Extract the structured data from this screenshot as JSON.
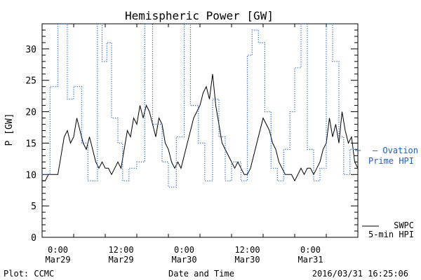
{
  "chart_data": {
    "type": "line",
    "title": "Hemispheric Power [GW]",
    "ylabel": "P [GW]",
    "xlabel": "Date and Time",
    "ylim": [
      0,
      34
    ],
    "xlim": [
      -7,
      13
    ],
    "x_unit": "hours relative to 00:00 Mar30 (scaled to 8-hour ticks)",
    "yticks": [
      "0",
      "5",
      "10",
      "15",
      "20",
      "25",
      "30"
    ],
    "xticks": [
      {
        "top": "0:00",
        "bottom": "Mar29"
      },
      {
        "top": "12:00",
        "bottom": "Mar29"
      },
      {
        "top": "0:00",
        "bottom": "Mar30"
      },
      {
        "top": "12:00",
        "bottom": "Mar30"
      },
      {
        "top": "0:00",
        "bottom": "Mar31"
      },
      {
        "top": "12:00",
        "bottom": "Mar31"
      }
    ],
    "grid": false,
    "legend_placement": "right",
    "series": [
      {
        "name": "SWPC 5-min HPI",
        "legend_lines": [
          "SWPC",
          "5-min HPI"
        ],
        "color": "#000000",
        "style": "solid",
        "points": [
          [
            -7.0,
            9
          ],
          [
            -6.8,
            9
          ],
          [
            -6.6,
            10
          ],
          [
            -6.4,
            10
          ],
          [
            -6.0,
            10
          ],
          [
            -5.8,
            13
          ],
          [
            -5.6,
            16
          ],
          [
            -5.4,
            17
          ],
          [
            -5.2,
            15
          ],
          [
            -5.0,
            16
          ],
          [
            -4.8,
            19
          ],
          [
            -4.6,
            17
          ],
          [
            -4.4,
            15
          ],
          [
            -4.2,
            14
          ],
          [
            -4.0,
            16
          ],
          [
            -3.8,
            14
          ],
          [
            -3.6,
            12
          ],
          [
            -3.4,
            11
          ],
          [
            -3.2,
            12
          ],
          [
            -3.0,
            11
          ],
          [
            -2.8,
            11
          ],
          [
            -2.6,
            10
          ],
          [
            -2.4,
            11
          ],
          [
            -2.2,
            12
          ],
          [
            -2.0,
            11
          ],
          [
            -1.8,
            14
          ],
          [
            -1.6,
            17
          ],
          [
            -1.4,
            16
          ],
          [
            -1.2,
            19
          ],
          [
            -1.0,
            18
          ],
          [
            -0.8,
            21
          ],
          [
            -0.6,
            19
          ],
          [
            -0.4,
            21
          ],
          [
            -0.2,
            20
          ],
          [
            0.0,
            18
          ],
          [
            0.2,
            16
          ],
          [
            0.4,
            19
          ],
          [
            0.6,
            18
          ],
          [
            0.8,
            15
          ],
          [
            1.0,
            14
          ],
          [
            1.2,
            12
          ],
          [
            1.4,
            11
          ],
          [
            1.6,
            12
          ],
          [
            1.8,
            11
          ],
          [
            2.0,
            13
          ],
          [
            2.2,
            15
          ],
          [
            2.4,
            17
          ],
          [
            2.6,
            19
          ],
          [
            2.8,
            20
          ],
          [
            3.0,
            21
          ],
          [
            3.2,
            23
          ],
          [
            3.4,
            24
          ],
          [
            3.6,
            22
          ],
          [
            3.8,
            26
          ],
          [
            4.0,
            21
          ],
          [
            4.2,
            18
          ],
          [
            4.4,
            15
          ],
          [
            4.6,
            14
          ],
          [
            4.8,
            13
          ],
          [
            5.0,
            12
          ],
          [
            5.2,
            11
          ],
          [
            5.4,
            12
          ],
          [
            5.6,
            11
          ],
          [
            5.8,
            10
          ],
          [
            6.0,
            10
          ],
          [
            6.2,
            11
          ],
          [
            6.4,
            13
          ],
          [
            6.6,
            15
          ],
          [
            6.8,
            17
          ],
          [
            7.0,
            19
          ],
          [
            7.2,
            18
          ],
          [
            7.4,
            17
          ],
          [
            7.6,
            15
          ],
          [
            7.8,
            14
          ],
          [
            8.0,
            12
          ],
          [
            8.2,
            11
          ],
          [
            8.4,
            10
          ],
          [
            8.6,
            10
          ],
          [
            8.8,
            10
          ],
          [
            9.0,
            9
          ],
          [
            9.2,
            10
          ],
          [
            9.4,
            11
          ],
          [
            9.6,
            10
          ],
          [
            9.8,
            11
          ],
          [
            10.0,
            11
          ],
          [
            10.2,
            10
          ],
          [
            10.4,
            11
          ],
          [
            10.6,
            12
          ],
          [
            10.8,
            14
          ],
          [
            11.0,
            15
          ],
          [
            11.2,
            19
          ],
          [
            11.4,
            16
          ],
          [
            11.6,
            18
          ],
          [
            11.8,
            15
          ],
          [
            12.0,
            20
          ],
          [
            12.2,
            17
          ],
          [
            12.4,
            15
          ],
          [
            12.6,
            16
          ],
          [
            12.8,
            12
          ],
          [
            13.0,
            11
          ]
        ]
      },
      {
        "name": "Ovation Prime HPI",
        "legend_lines": [
          "Ovation",
          "Prime HPI"
        ],
        "color": "#1f5fbf",
        "style": "dotted",
        "points": [
          [
            -7.0,
            10
          ],
          [
            -6.5,
            10
          ],
          [
            -6.5,
            24
          ],
          [
            -6.0,
            24
          ],
          [
            -6.0,
            34
          ],
          [
            -5.4,
            34
          ],
          [
            -5.4,
            22
          ],
          [
            -5.0,
            22
          ],
          [
            -5.0,
            24
          ],
          [
            -4.5,
            24
          ],
          [
            -4.5,
            15
          ],
          [
            -4.1,
            15
          ],
          [
            -4.1,
            9
          ],
          [
            -3.5,
            9
          ],
          [
            -3.5,
            34
          ],
          [
            -3.2,
            34
          ],
          [
            -3.2,
            28
          ],
          [
            -2.9,
            28
          ],
          [
            -2.9,
            31
          ],
          [
            -2.6,
            31
          ],
          [
            -2.6,
            19
          ],
          [
            -2.2,
            19
          ],
          [
            -2.2,
            15
          ],
          [
            -1.9,
            15
          ],
          [
            -1.9,
            9
          ],
          [
            -1.5,
            9
          ],
          [
            -1.5,
            11
          ],
          [
            -1.0,
            11
          ],
          [
            -1.0,
            12
          ],
          [
            -0.5,
            12
          ],
          [
            -0.5,
            34
          ],
          [
            0.0,
            34
          ],
          [
            0.0,
            18
          ],
          [
            0.6,
            18
          ],
          [
            0.6,
            12
          ],
          [
            1.0,
            12
          ],
          [
            1.0,
            8
          ],
          [
            1.5,
            8
          ],
          [
            1.5,
            16
          ],
          [
            2.0,
            16
          ],
          [
            2.0,
            34
          ],
          [
            2.4,
            34
          ],
          [
            2.4,
            21
          ],
          [
            2.9,
            21
          ],
          [
            2.9,
            15
          ],
          [
            3.3,
            15
          ],
          [
            3.3,
            9
          ],
          [
            3.8,
            9
          ],
          [
            3.8,
            22
          ],
          [
            4.2,
            22
          ],
          [
            4.2,
            16
          ],
          [
            4.6,
            16
          ],
          [
            4.6,
            9
          ],
          [
            5.0,
            9
          ],
          [
            5.0,
            12
          ],
          [
            5.6,
            12
          ],
          [
            5.6,
            9
          ],
          [
            6.0,
            9
          ],
          [
            6.0,
            29
          ],
          [
            6.3,
            29
          ],
          [
            6.3,
            33
          ],
          [
            6.7,
            33
          ],
          [
            6.7,
            31
          ],
          [
            7.1,
            31
          ],
          [
            7.1,
            20
          ],
          [
            7.5,
            20
          ],
          [
            7.5,
            11
          ],
          [
            7.9,
            11
          ],
          [
            7.9,
            9
          ],
          [
            8.3,
            9
          ],
          [
            8.3,
            14
          ],
          [
            8.7,
            14
          ],
          [
            8.7,
            20
          ],
          [
            9.0,
            20
          ],
          [
            9.0,
            27
          ],
          [
            9.4,
            27
          ],
          [
            9.4,
            34
          ],
          [
            9.8,
            34
          ],
          [
            9.8,
            14
          ],
          [
            10.2,
            14
          ],
          [
            10.2,
            9
          ],
          [
            10.6,
            9
          ],
          [
            10.6,
            11
          ],
          [
            11.0,
            11
          ],
          [
            11.0,
            34
          ],
          [
            11.4,
            34
          ],
          [
            11.4,
            28
          ],
          [
            11.8,
            28
          ],
          [
            11.8,
            16
          ],
          [
            12.1,
            16
          ],
          [
            12.1,
            10
          ],
          [
            12.5,
            10
          ],
          [
            12.5,
            14
          ],
          [
            13.0,
            14
          ]
        ]
      }
    ]
  },
  "footer": {
    "left": "Plot: CCMC",
    "center": "Date and Time",
    "right": "2016/03/31 16:25:06"
  },
  "legend": {
    "ovation_line1": "— Ovation",
    "ovation_line2": "Prime HPI",
    "swpc_line1": "SWPC",
    "swpc_line2": "5-min HPI"
  }
}
